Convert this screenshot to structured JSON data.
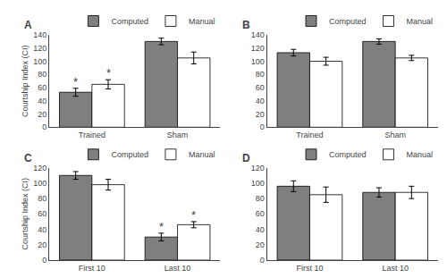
{
  "chart_data": [
    {
      "type": "bar",
      "title": "A",
      "categories": [
        "Trained",
        "Sham"
      ],
      "series": [
        {
          "name": "Computed",
          "color": "#7f7f7f",
          "values": [
            53,
            130
          ],
          "errors": [
            6,
            5
          ]
        },
        {
          "name": "Manual",
          "color": "#ffffff",
          "values": [
            65,
            105
          ],
          "errors": [
            7,
            9
          ]
        }
      ],
      "ylabel": "Courtship Index (CI)",
      "ylim": [
        0,
        140
      ],
      "yticks": [
        0,
        20,
        40,
        60,
        80,
        100,
        120,
        140
      ],
      "grid": false,
      "legend": "upper right",
      "annotations": [
        {
          "text": "*",
          "category": "Trained",
          "series": "Computed"
        },
        {
          "text": "*",
          "category": "Trained",
          "series": "Manual"
        }
      ]
    },
    {
      "type": "bar",
      "title": "B",
      "categories": [
        "Trained",
        "Sham"
      ],
      "series": [
        {
          "name": "Computed",
          "color": "#7f7f7f",
          "values": [
            113,
            130
          ],
          "errors": [
            5,
            4
          ]
        },
        {
          "name": "Manual",
          "color": "#ffffff",
          "values": [
            100,
            105
          ],
          "errors": [
            6,
            4
          ]
        }
      ],
      "ylim": [
        0,
        140
      ],
      "yticks": [
        0,
        20,
        40,
        60,
        80,
        100,
        120,
        140
      ],
      "grid": false,
      "legend": "upper right"
    },
    {
      "type": "bar",
      "title": "C",
      "categories": [
        "First 10",
        "Last 10"
      ],
      "series": [
        {
          "name": "Computed",
          "color": "#7f7f7f",
          "values": [
            110,
            30
          ],
          "errors": [
            5,
            5
          ]
        },
        {
          "name": "Manual",
          "color": "#ffffff",
          "values": [
            98,
            46
          ],
          "errors": [
            7,
            4
          ]
        }
      ],
      "ylabel": "Courtship Index (CI)",
      "ylim": [
        0,
        120
      ],
      "yticks": [
        0,
        20,
        40,
        60,
        80,
        100,
        120
      ],
      "grid": false,
      "legend": "upper right",
      "annotations": [
        {
          "text": "*",
          "category": "Last 10",
          "series": "Computed"
        },
        {
          "text": "*",
          "category": "Last 10",
          "series": "Manual"
        }
      ]
    },
    {
      "type": "bar",
      "title": "D",
      "categories": [
        "First 10",
        "Last 10"
      ],
      "series": [
        {
          "name": "Computed",
          "color": "#7f7f7f",
          "values": [
            96,
            88
          ],
          "errors": [
            7,
            6
          ]
        },
        {
          "name": "Manual",
          "color": "#ffffff",
          "values": [
            85,
            88
          ],
          "errors": [
            10,
            8
          ]
        }
      ],
      "ylim": [
        0,
        120
      ],
      "yticks": [
        0,
        20,
        40,
        60,
        80,
        100,
        120
      ],
      "grid": false,
      "legend": "upper right"
    }
  ]
}
